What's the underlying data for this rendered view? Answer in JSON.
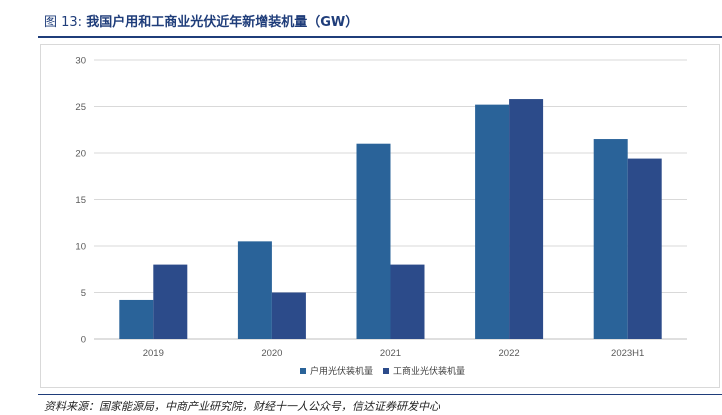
{
  "figure": {
    "label": "图 13:",
    "title": "我国户用和工商业光伏近年新增装机量（GW）",
    "source": "资料来源：国家能源局，中商产业研究院，财经十一人公众号，信达证券研发中心"
  },
  "chart_data": {
    "type": "bar",
    "title": "",
    "xlabel": "",
    "ylabel": "",
    "categories": [
      "2019",
      "2020",
      "2021",
      "2022",
      "2023H1"
    ],
    "series": [
      {
        "name": "户用光伏装机量",
        "color": "#2a6399",
        "values": [
          4.2,
          10.5,
          21.0,
          25.2,
          21.5
        ]
      },
      {
        "name": "工商业光伏装机量",
        "color": "#2c4b8a",
        "values": [
          8.0,
          5.0,
          8.0,
          25.8,
          19.4
        ]
      }
    ],
    "ylim": [
      0,
      30
    ],
    "yticks": [
      0,
      5,
      10,
      15,
      20,
      25,
      30
    ],
    "grid": true,
    "legend": "bottom-center"
  }
}
